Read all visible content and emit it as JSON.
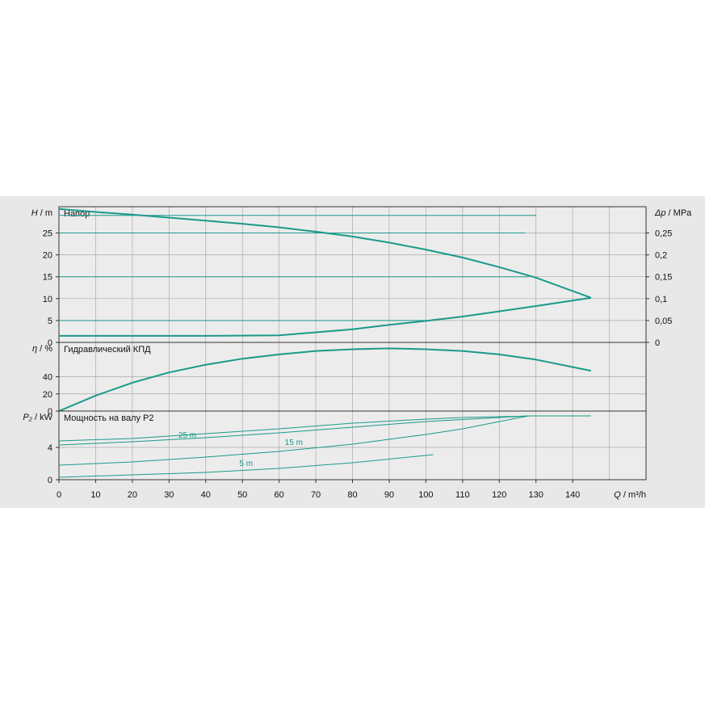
{
  "chart_data": {
    "type": "line",
    "colors": {
      "curve": "#1a9a8a",
      "grid": "#aaaaaa",
      "frame": "#333333",
      "background": "#e8e8e8",
      "plot_bg": "#ececec"
    },
    "x_axis": {
      "label_var": "Q",
      "label_unit": "m³/h",
      "range": [
        0,
        160
      ],
      "ticks": [
        0,
        10,
        20,
        30,
        40,
        50,
        60,
        70,
        80,
        90,
        100,
        110,
        120,
        130,
        140
      ],
      "grid": true
    },
    "panels": [
      {
        "id": "head",
        "title": "Напор",
        "y_var": "H",
        "y_unit": "m",
        "y_range": [
          0,
          31
        ],
        "y_ticks": [
          "0",
          "5",
          "10",
          "15",
          "20",
          "25"
        ],
        "y_tick_values": [
          0,
          5,
          10,
          15,
          20,
          25
        ],
        "right_axis": {
          "var": "Δp",
          "unit": "MPa",
          "ticks": [
            "0",
            "0,05",
            "0,1",
            "0,15",
            "0,2",
            "0,25"
          ],
          "tick_values": [
            0,
            0.05,
            0.1,
            0.15,
            0.2,
            0.25
          ]
        },
        "series": [
          {
            "type": "pump-curve",
            "x": [
              0,
              10,
              20,
              30,
              40,
              50,
              60,
              70,
              80,
              90,
              100,
              110,
              120,
              130,
              145
            ],
            "y": [
              30.5,
              29.8,
              29.2,
              28.5,
              27.8,
              27.1,
              26.3,
              25.3,
              24.2,
              22.8,
              21.2,
              19.4,
              17.2,
              14.8,
              10.2
            ]
          },
          {
            "type": "system-curve",
            "x": [
              0,
              20,
              40,
              60,
              70,
              80,
              90,
              100,
              110,
              120,
              130,
              145
            ],
            "y": [
              1.5,
              1.5,
              1.5,
              1.6,
              2.3,
              3.0,
              4.0,
              4.9,
              5.9,
              7.1,
              8.3,
              10.2
            ]
          },
          {
            "type": "reference-line",
            "x": [
              0,
              130
            ],
            "y": [
              29,
              29
            ]
          },
          {
            "type": "reference-line",
            "x": [
              0,
              127
            ],
            "y": [
              25,
              25
            ]
          },
          {
            "type": "reference-line",
            "x": [
              0,
              128
            ],
            "y": [
              15,
              15
            ]
          },
          {
            "type": "reference-line",
            "x": [
              0,
              100
            ],
            "y": [
              5,
              5
            ]
          }
        ]
      },
      {
        "id": "efficiency",
        "title": "Гидравлический КПД",
        "y_var": "η",
        "y_unit": "%",
        "y_range": [
          0,
          80
        ],
        "y_ticks": [
          "0",
          "20",
          "40"
        ],
        "y_tick_values": [
          0,
          20,
          40
        ],
        "series": [
          {
            "type": "efficiency-curve",
            "x": [
              0,
              10,
              20,
              30,
              40,
              50,
              60,
              70,
              80,
              90,
              100,
              110,
              120,
              130,
              145
            ],
            "y": [
              0,
              18,
              33,
              45,
              54,
              61,
              66,
              70,
              72,
              73,
              72,
              70,
              66,
              60,
              47
            ]
          }
        ]
      },
      {
        "id": "power",
        "title": "Мощность на валу P2",
        "y_var": "P₂",
        "y_unit": "kW",
        "y_range": [
          0,
          8.5
        ],
        "y_ticks": [
          "0",
          "4"
        ],
        "y_tick_values": [
          0,
          4
        ],
        "series": [
          {
            "type": "power-curve",
            "x": [
              0,
              20,
              40,
              60,
              80,
              100,
              110,
              120,
              129,
              145
            ],
            "y": [
              4.8,
              5.1,
              5.7,
              6.3,
              7.0,
              7.5,
              7.7,
              7.8,
              7.9,
              7.9
            ]
          },
          {
            "type": "power-25m",
            "x": [
              0,
              20,
              40,
              60,
              80,
              100,
              120,
              128
            ],
            "y": [
              4.3,
              4.7,
              5.2,
              5.8,
              6.5,
              7.2,
              7.7,
              7.9
            ]
          },
          {
            "type": "power-15m",
            "x": [
              0,
              20,
              40,
              60,
              80,
              100,
              110,
              120,
              128
            ],
            "y": [
              1.8,
              2.2,
              2.8,
              3.5,
              4.4,
              5.6,
              6.3,
              7.2,
              7.9
            ]
          },
          {
            "type": "power-5m",
            "x": [
              0,
              20,
              40,
              60,
              80,
              102
            ],
            "y": [
              0.3,
              0.6,
              0.9,
              1.4,
              2.1,
              3.1
            ]
          }
        ],
        "curve_labels": [
          {
            "text": "25 m",
            "x": 35,
            "y": 5.2
          },
          {
            "text": "15 m",
            "x": 64,
            "y": 4.3
          },
          {
            "text": "5 m",
            "x": 51,
            "y": 1.7
          }
        ]
      }
    ]
  }
}
